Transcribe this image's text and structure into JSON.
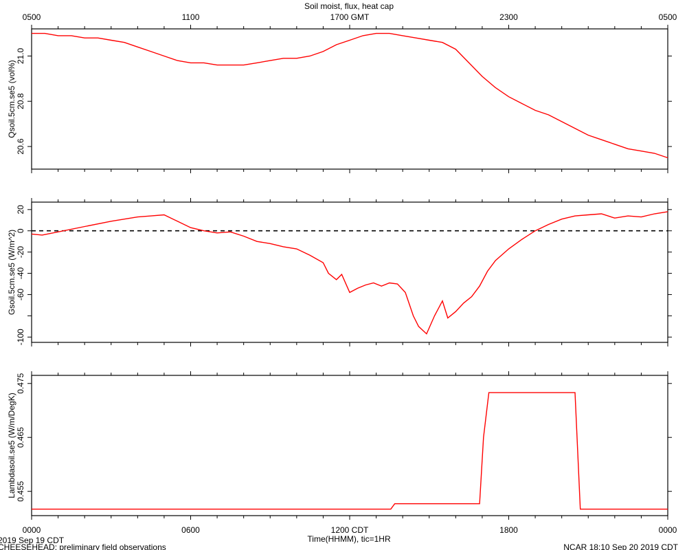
{
  "chart_data": {
    "title": "Soil moist, flux, heat cap",
    "type": "line",
    "x_top": {
      "label": "",
      "tick_labels": [
        "0500",
        "1100",
        "1700 GMT",
        "2300",
        "0500"
      ]
    },
    "x_bottom": {
      "label": "Time(HHMM), tic=1HR",
      "tick_labels": [
        "0000",
        "0600",
        "1200 CDT",
        "1800",
        "0000"
      ]
    },
    "x_range_hours": [
      0,
      24
    ],
    "footer": {
      "date_left": "2019 Sep 19 CDT",
      "subtitle": "CHEESEHEAD: preliminary field observations",
      "credit_right": "NCAR 18:10 Sep 20 2019 CDT"
    },
    "panels": [
      {
        "name": "qsoil",
        "ylabel": "Qsoil.5cm.se5 (vol%)",
        "ylim": [
          20.5,
          21.12
        ],
        "yticks": [
          20.6,
          20.8,
          21.0
        ],
        "ytick_labels": [
          "20.6",
          "20.8",
          "21.0"
        ],
        "color": "#ff0000",
        "x": [
          0,
          0.5,
          1,
          1.5,
          2,
          2.5,
          3,
          3.5,
          4,
          4.5,
          5,
          5.5,
          6,
          6.5,
          7,
          7.5,
          8,
          8.5,
          9,
          9.5,
          10,
          10.5,
          11,
          11.5,
          12,
          12.5,
          13,
          13.5,
          14,
          14.5,
          15,
          15.5,
          16,
          16.5,
          17,
          17.5,
          18,
          18.5,
          19,
          19.5,
          20,
          20.5,
          21,
          21.5,
          22,
          22.5,
          23,
          23.5,
          24
        ],
        "y": [
          21.1,
          21.1,
          21.09,
          21.09,
          21.08,
          21.08,
          21.07,
          21.06,
          21.04,
          21.02,
          21.0,
          20.98,
          20.97,
          20.97,
          20.96,
          20.96,
          20.96,
          20.97,
          20.98,
          20.99,
          20.99,
          21.0,
          21.02,
          21.05,
          21.07,
          21.09,
          21.1,
          21.1,
          21.09,
          21.08,
          21.07,
          21.06,
          21.03,
          20.97,
          20.91,
          20.86,
          20.82,
          20.79,
          20.76,
          20.74,
          20.71,
          20.68,
          20.65,
          20.63,
          20.61,
          20.59,
          20.58,
          20.57,
          20.55
        ]
      },
      {
        "name": "gsoil",
        "ylabel": "Gsoil.5cm.se5 (W/m^2)",
        "ylim": [
          -105,
          27
        ],
        "yticks": [
          -100,
          -80,
          -60,
          -40,
          -20,
          0,
          20
        ],
        "ytick_labels": [
          "-100",
          "",
          "-60",
          "-40",
          "-20",
          "0",
          "20"
        ],
        "zero_line": true,
        "color": "#ff0000",
        "x": [
          0,
          0.4,
          1,
          2,
          3,
          4,
          4.5,
          5,
          5.5,
          6,
          6.5,
          7,
          7.5,
          8,
          8.5,
          9,
          9.5,
          10,
          10.5,
          11,
          11.2,
          11.5,
          11.7,
          12,
          12.3,
          12.6,
          12.9,
          13.2,
          13.5,
          13.8,
          14.1,
          14.4,
          14.6,
          14.9,
          15.2,
          15.5,
          15.7,
          16,
          16.3,
          16.6,
          16.9,
          17.2,
          17.5,
          18,
          18.5,
          19,
          19.5,
          20,
          20.5,
          21,
          21.5,
          22,
          22.5,
          23,
          23.5,
          24
        ],
        "y": [
          -3,
          -4,
          -1,
          4,
          9,
          13,
          14,
          15,
          9,
          3,
          0,
          -2,
          -1,
          -5,
          -10,
          -12,
          -15,
          -17,
          -23,
          -30,
          -40,
          -46,
          -41,
          -58,
          -54,
          -51,
          -49,
          -52,
          -49,
          -50,
          -58,
          -80,
          -90,
          -97,
          -80,
          -66,
          -82,
          -76,
          -68,
          -62,
          -52,
          -38,
          -28,
          -17,
          -8,
          0,
          6,
          11,
          14,
          15,
          16,
          12,
          14,
          13,
          16,
          18
        ]
      },
      {
        "name": "lambda",
        "ylabel": "Lambdasoil.se5 (W/m/DegK)",
        "ylim": [
          0.4505,
          0.4765
        ],
        "yticks": [
          0.455,
          0.465,
          0.475
        ],
        "ytick_labels": [
          "0.455",
          "0.465",
          "0.475"
        ],
        "color": "#ff0000",
        "x": [
          0,
          13.55,
          13.7,
          16.9,
          17.05,
          17.25,
          20.5,
          20.7,
          24
        ],
        "y": [
          0.4517,
          0.4517,
          0.4527,
          0.4527,
          0.465,
          0.4733,
          0.4733,
          0.4517,
          0.4517
        ]
      }
    ]
  }
}
